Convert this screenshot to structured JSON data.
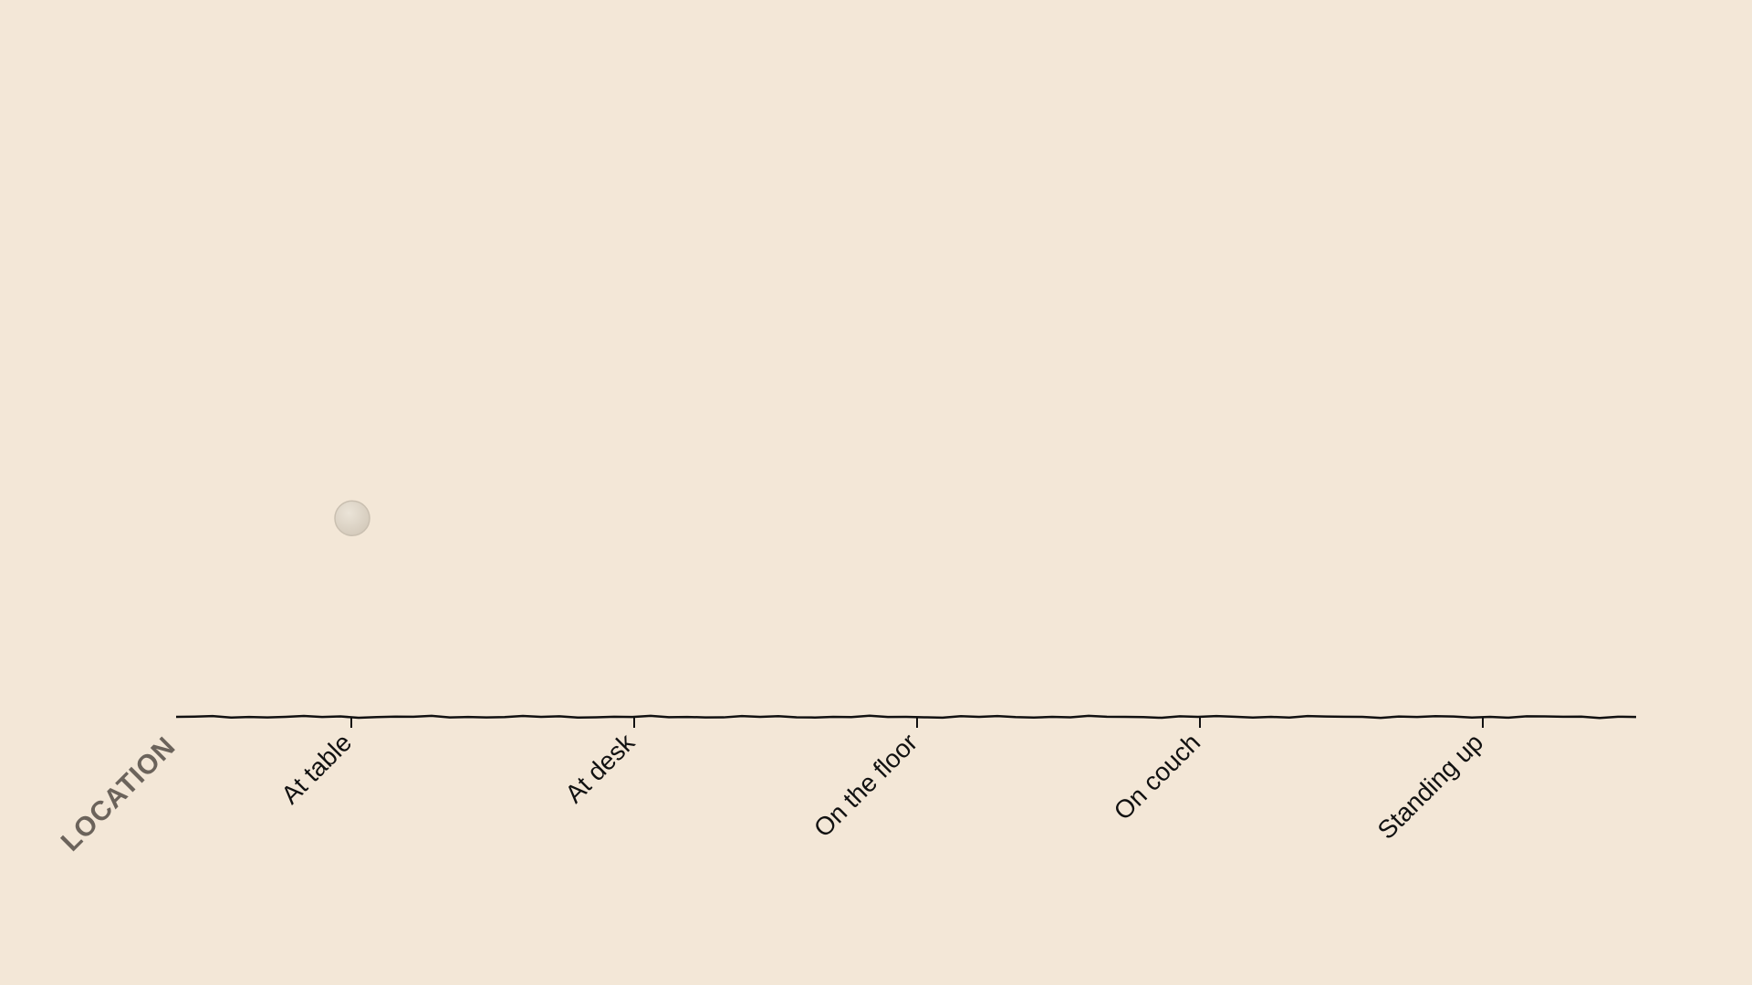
{
  "chart_data": {
    "type": "scatter",
    "x_axis_title": "LOCATION",
    "categories": [
      "At table",
      "At desk",
      "On the floor",
      "On couch",
      "Standing up"
    ],
    "points": [
      {
        "category": "At table",
        "y": 0.3
      }
    ],
    "ylim": [
      0,
      1
    ],
    "grid": false,
    "colors": {
      "background": "#f3e7d7",
      "axis": "#111111",
      "tick_label": "#111111",
      "axis_title": "#6b635b",
      "point_fill": "#ddd4c6",
      "point_stroke": "#c9bfb0"
    }
  }
}
